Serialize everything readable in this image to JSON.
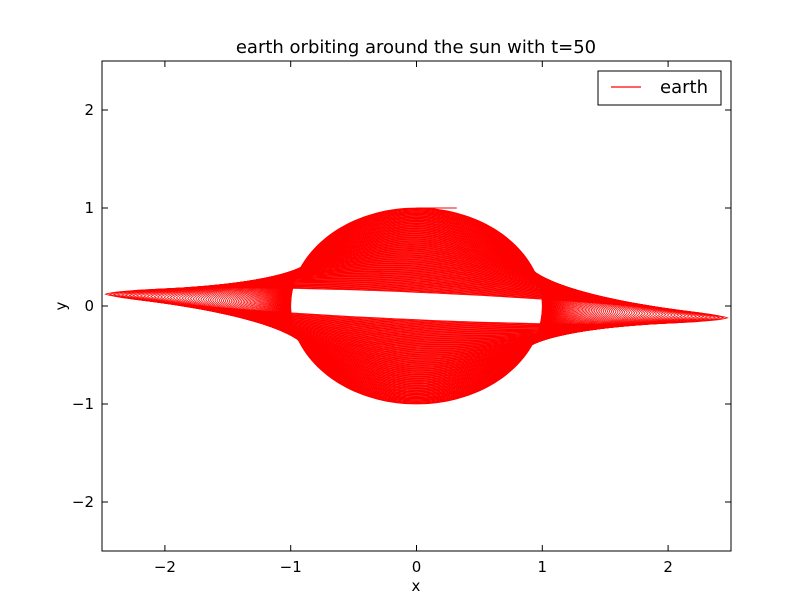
{
  "chart_data": {
    "type": "line",
    "title": "earth orbiting around the sun with t=50",
    "xlabel": "x",
    "ylabel": "y",
    "xlim": [
      -2.5,
      2.5
    ],
    "ylim": [
      -2.5,
      2.5
    ],
    "x_ticks": [
      -2,
      -1,
      0,
      1,
      2
    ],
    "y_ticks": [
      -2,
      -1,
      0,
      1,
      2
    ],
    "x_tick_labels": [
      "−2",
      "−1",
      "0",
      "1",
      "2"
    ],
    "y_tick_labels": [
      "−2",
      "−1",
      "0",
      "1",
      "2"
    ],
    "grid": false,
    "legend_position": "top-right",
    "series": [
      {
        "name": "earth",
        "color": "#ff0000",
        "description_parameters": {
          "t_end": 50,
          "radius": 1.0,
          "x_stretch_max": 2.15,
          "y_tilt": 0.12,
          "loops": 130
        }
      }
    ]
  }
}
